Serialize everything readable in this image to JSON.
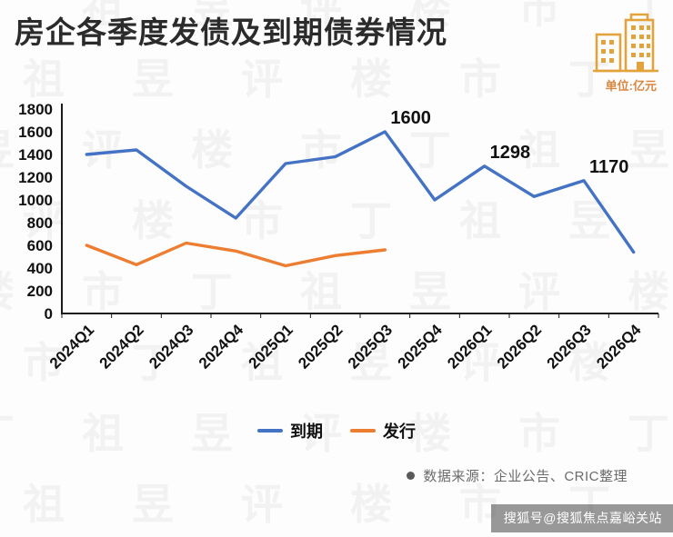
{
  "header": {
    "title": "房企各季度发债及到期债券情况",
    "unit_label": "单位:亿元"
  },
  "chart_data": {
    "type": "line",
    "categories": [
      "2024Q1",
      "2024Q2",
      "2024Q3",
      "2024Q4",
      "2025Q1",
      "2025Q2",
      "2025Q3",
      "2025Q4",
      "2026Q1",
      "2026Q2",
      "2026Q3",
      "2026Q4"
    ],
    "series": [
      {
        "name": "到期",
        "color": "#4472C4",
        "values": [
          1400,
          1440,
          1120,
          840,
          1320,
          1380,
          1600,
          1000,
          1298,
          1030,
          1170,
          540
        ]
      },
      {
        "name": "发行",
        "color": "#ED7D31",
        "values": [
          600,
          430,
          620,
          550,
          420,
          510,
          560,
          null,
          null,
          null,
          null,
          null
        ]
      }
    ],
    "title": "",
    "xlabel": "",
    "ylabel": "",
    "ylim": [
      0,
      1800
    ],
    "ytick_step": 200,
    "grid": false,
    "legend_position": "bottom",
    "annotations": [
      {
        "series": 0,
        "index": 6,
        "text": "1600"
      },
      {
        "series": 0,
        "index": 8,
        "text": "1298"
      },
      {
        "series": 0,
        "index": 10,
        "text": "1170"
      }
    ]
  },
  "legend": {
    "items": [
      {
        "label": "到期",
        "color": "#4472C4"
      },
      {
        "label": "发行",
        "color": "#ED7D31"
      }
    ]
  },
  "footer": {
    "source": "数据来源：企业公告、CRIC整理"
  },
  "watermark_badge": "搜狐号@搜狐焦点嘉峪关站",
  "background_watermark": {
    "text": "丁祖昱评楼市"
  },
  "colors": {
    "maturity_line": "#4472C4",
    "issuance_line": "#ED7D31",
    "title_text": "#2b2b2b",
    "unit_text": "#d9863f",
    "icon_orange": "#E2A33D"
  }
}
